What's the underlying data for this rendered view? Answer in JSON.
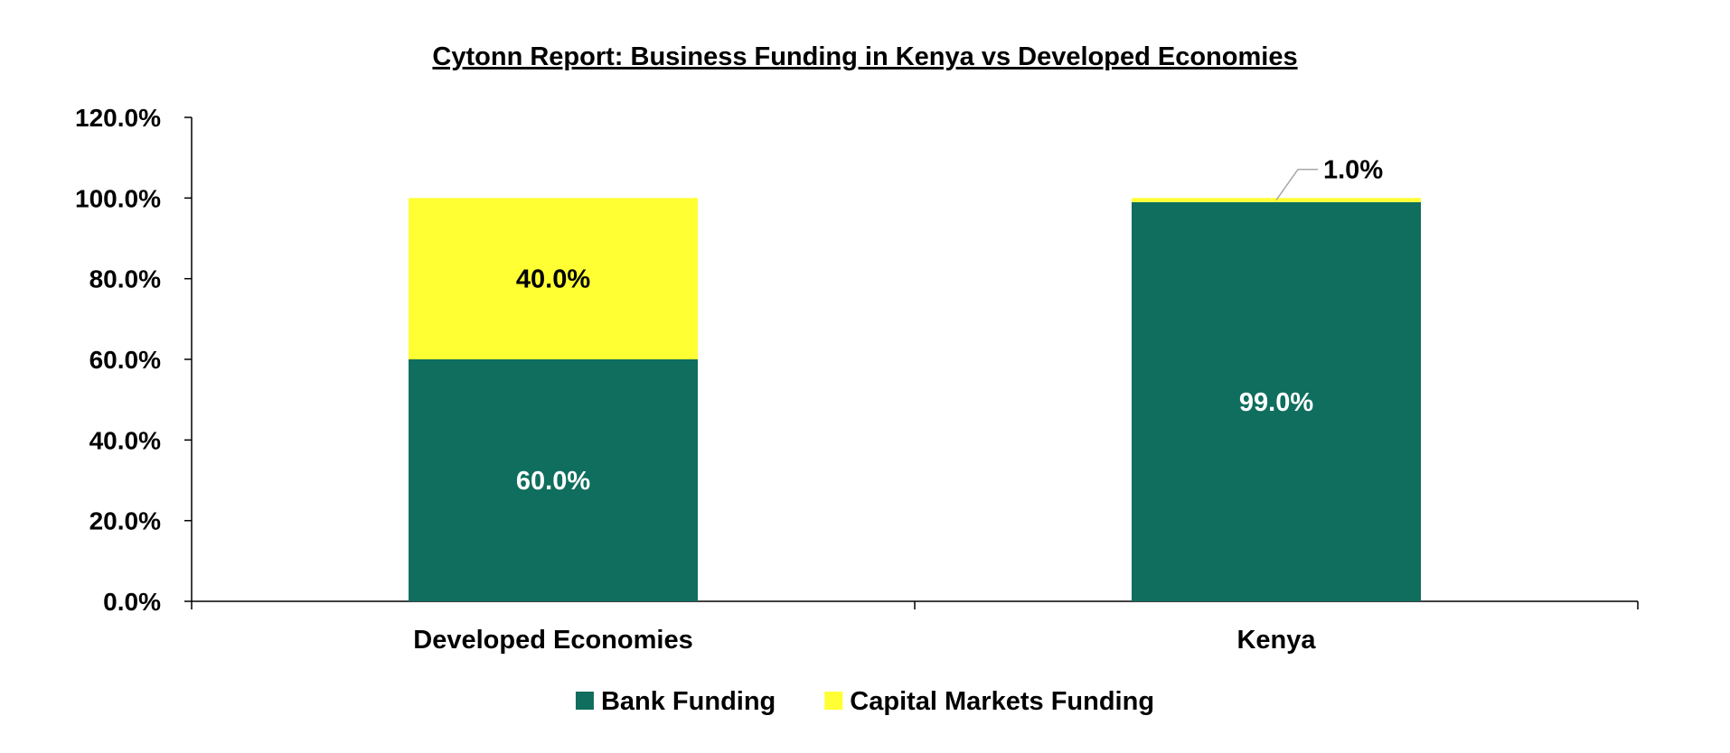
{
  "chart_data": {
    "type": "bar",
    "stacked": true,
    "title": "Cytonn Report: Business Funding in Kenya vs Developed Economies",
    "xlabel": "",
    "ylabel": "",
    "categories": [
      "Developed Economies",
      "Kenya"
    ],
    "series": [
      {
        "name": "Bank Funding",
        "values": [
          60.0,
          99.0
        ],
        "labels": [
          "60.0%",
          "99.0%"
        ],
        "color": "#0F6E5E",
        "label_color": "#FFFFFF"
      },
      {
        "name": "Capital Markets Funding",
        "values": [
          40.0,
          1.0
        ],
        "labels": [
          "40.0%",
          "1.0%"
        ],
        "color": "#FFFF33",
        "label_color": "#000000"
      }
    ],
    "ylim": [
      0,
      120
    ],
    "yticks": [
      0,
      20,
      40,
      60,
      80,
      100,
      120
    ],
    "ytick_labels": [
      "0.0%",
      "20.0%",
      "40.0%",
      "60.0%",
      "80.0%",
      "100.0%",
      "120.0%"
    ],
    "grid": false,
    "legend_position": "bottom-center"
  }
}
